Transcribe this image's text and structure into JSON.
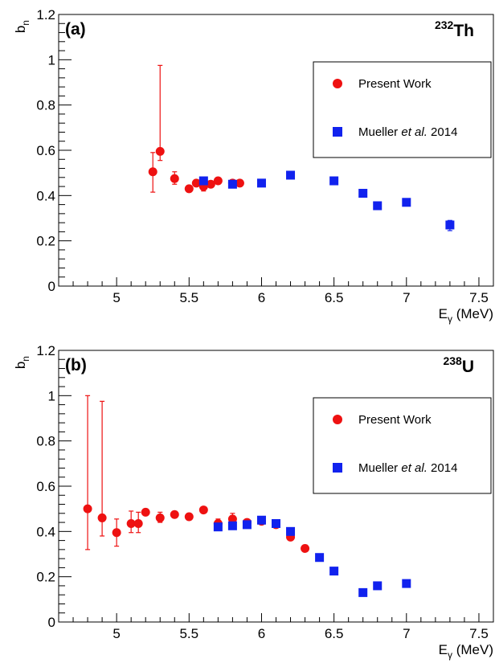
{
  "colors": {
    "present": "#ee1111",
    "mueller": "#1122ee",
    "axis": "#000000"
  },
  "chart_data": [
    {
      "type": "scatter",
      "panel_label": "(a)",
      "nucleus": {
        "mass": "232",
        "symbol": "Th"
      },
      "xlabel": {
        "main": "E",
        "sub": "γ",
        "rest": " (MeV)"
      },
      "ylabel": {
        "main": "b",
        "sub": "n"
      },
      "xlim": [
        4.6,
        7.6
      ],
      "ylim": [
        0,
        1.2
      ],
      "x_ticks": [
        5,
        5.5,
        6,
        6.5,
        7,
        7.5
      ],
      "x_tick_labels": [
        "5",
        "5.5",
        "6",
        "6.5",
        "7",
        "7.5"
      ],
      "y_ticks": [
        0,
        0.2,
        0.4,
        0.6,
        0.8,
        1,
        1.2
      ],
      "y_tick_labels": [
        "0",
        "0.2",
        "0.4",
        "0.6",
        "0.8",
        "1",
        "1.2"
      ],
      "grid": false,
      "legend": {
        "placement": "right",
        "entries": [
          {
            "text": "Present Work",
            "marker": "circle"
          },
          {
            "text_parts": [
              "Mueller ",
              "et al.",
              " 2014"
            ],
            "marker": "square"
          }
        ]
      },
      "series": [
        {
          "name": "Present Work",
          "marker": "circle",
          "points": [
            {
              "x": 5.25,
              "y": 0.505,
              "lo": 0.415,
              "hi": 0.59
            },
            {
              "x": 5.3,
              "y": 0.595,
              "lo": 0.555,
              "hi": 0.975
            },
            {
              "x": 5.4,
              "y": 0.475,
              "lo": 0.45,
              "hi": 0.505
            },
            {
              "x": 5.5,
              "y": 0.43
            },
            {
              "x": 5.55,
              "y": 0.455
            },
            {
              "x": 5.6,
              "y": 0.44,
              "lo": 0.42,
              "hi": 0.46
            },
            {
              "x": 5.65,
              "y": 0.45
            },
            {
              "x": 5.7,
              "y": 0.465
            },
            {
              "x": 5.8,
              "y": 0.455,
              "lo": 0.445,
              "hi": 0.47
            },
            {
              "x": 5.85,
              "y": 0.455
            }
          ]
        },
        {
          "name": "Mueller et al. 2014",
          "marker": "square",
          "points": [
            {
              "x": 5.6,
              "y": 0.465
            },
            {
              "x": 5.8,
              "y": 0.45
            },
            {
              "x": 6.0,
              "y": 0.455
            },
            {
              "x": 6.2,
              "y": 0.49
            },
            {
              "x": 6.5,
              "y": 0.465
            },
            {
              "x": 6.7,
              "y": 0.41
            },
            {
              "x": 6.8,
              "y": 0.355
            },
            {
              "x": 7.0,
              "y": 0.37
            },
            {
              "x": 7.3,
              "y": 0.27,
              "lo": 0.245,
              "hi": 0.29
            }
          ]
        }
      ]
    },
    {
      "type": "scatter",
      "panel_label": "(b)",
      "nucleus": {
        "mass": "238",
        "symbol": "U"
      },
      "xlabel": {
        "main": "E",
        "sub": "γ",
        "rest": " (MeV)"
      },
      "ylabel": {
        "main": "b",
        "sub": "n"
      },
      "xlim": [
        4.6,
        7.6
      ],
      "ylim": [
        0,
        1.2
      ],
      "x_ticks": [
        5,
        5.5,
        6,
        6.5,
        7,
        7.5
      ],
      "x_tick_labels": [
        "5",
        "5.5",
        "6",
        "6.5",
        "7",
        "7.5"
      ],
      "y_ticks": [
        0,
        0.2,
        0.4,
        0.6,
        0.8,
        1,
        1.2
      ],
      "y_tick_labels": [
        "0",
        "0.2",
        "0.4",
        "0.6",
        "0.8",
        "1",
        "1.2"
      ],
      "grid": false,
      "legend": {
        "placement": "right",
        "entries": [
          {
            "text": "Present Work",
            "marker": "circle"
          },
          {
            "text_parts": [
              "Mueller ",
              "et al.",
              " 2014"
            ],
            "marker": "square"
          }
        ]
      },
      "series": [
        {
          "name": "Present Work",
          "marker": "circle",
          "points": [
            {
              "x": 4.8,
              "y": 0.5,
              "lo": 0.32,
              "hi": 1.0
            },
            {
              "x": 4.9,
              "y": 0.46,
              "lo": 0.38,
              "hi": 0.975
            },
            {
              "x": 5.0,
              "y": 0.395,
              "lo": 0.335,
              "hi": 0.455
            },
            {
              "x": 5.1,
              "y": 0.435,
              "lo": 0.395,
              "hi": 0.49
            },
            {
              "x": 5.15,
              "y": 0.435,
              "lo": 0.395,
              "hi": 0.485
            },
            {
              "x": 5.2,
              "y": 0.485
            },
            {
              "x": 5.3,
              "y": 0.46,
              "lo": 0.44,
              "hi": 0.485
            },
            {
              "x": 5.4,
              "y": 0.475
            },
            {
              "x": 5.5,
              "y": 0.465
            },
            {
              "x": 5.6,
              "y": 0.495
            },
            {
              "x": 5.7,
              "y": 0.435,
              "lo": 0.415,
              "hi": 0.455
            },
            {
              "x": 5.8,
              "y": 0.455,
              "lo": 0.435,
              "hi": 0.48
            },
            {
              "x": 5.9,
              "y": 0.44
            },
            {
              "x": 6.0,
              "y": 0.445
            },
            {
              "x": 6.1,
              "y": 0.43
            },
            {
              "x": 6.2,
              "y": 0.375
            },
            {
              "x": 6.3,
              "y": 0.325
            }
          ]
        },
        {
          "name": "Mueller et al. 2014",
          "marker": "square",
          "points": [
            {
              "x": 5.7,
              "y": 0.42
            },
            {
              "x": 5.8,
              "y": 0.425
            },
            {
              "x": 5.9,
              "y": 0.43
            },
            {
              "x": 6.0,
              "y": 0.45
            },
            {
              "x": 6.1,
              "y": 0.435
            },
            {
              "x": 6.2,
              "y": 0.4
            },
            {
              "x": 6.4,
              "y": 0.285
            },
            {
              "x": 6.5,
              "y": 0.225
            },
            {
              "x": 6.7,
              "y": 0.13
            },
            {
              "x": 6.8,
              "y": 0.16
            },
            {
              "x": 7.0,
              "y": 0.17
            }
          ]
        }
      ]
    }
  ]
}
